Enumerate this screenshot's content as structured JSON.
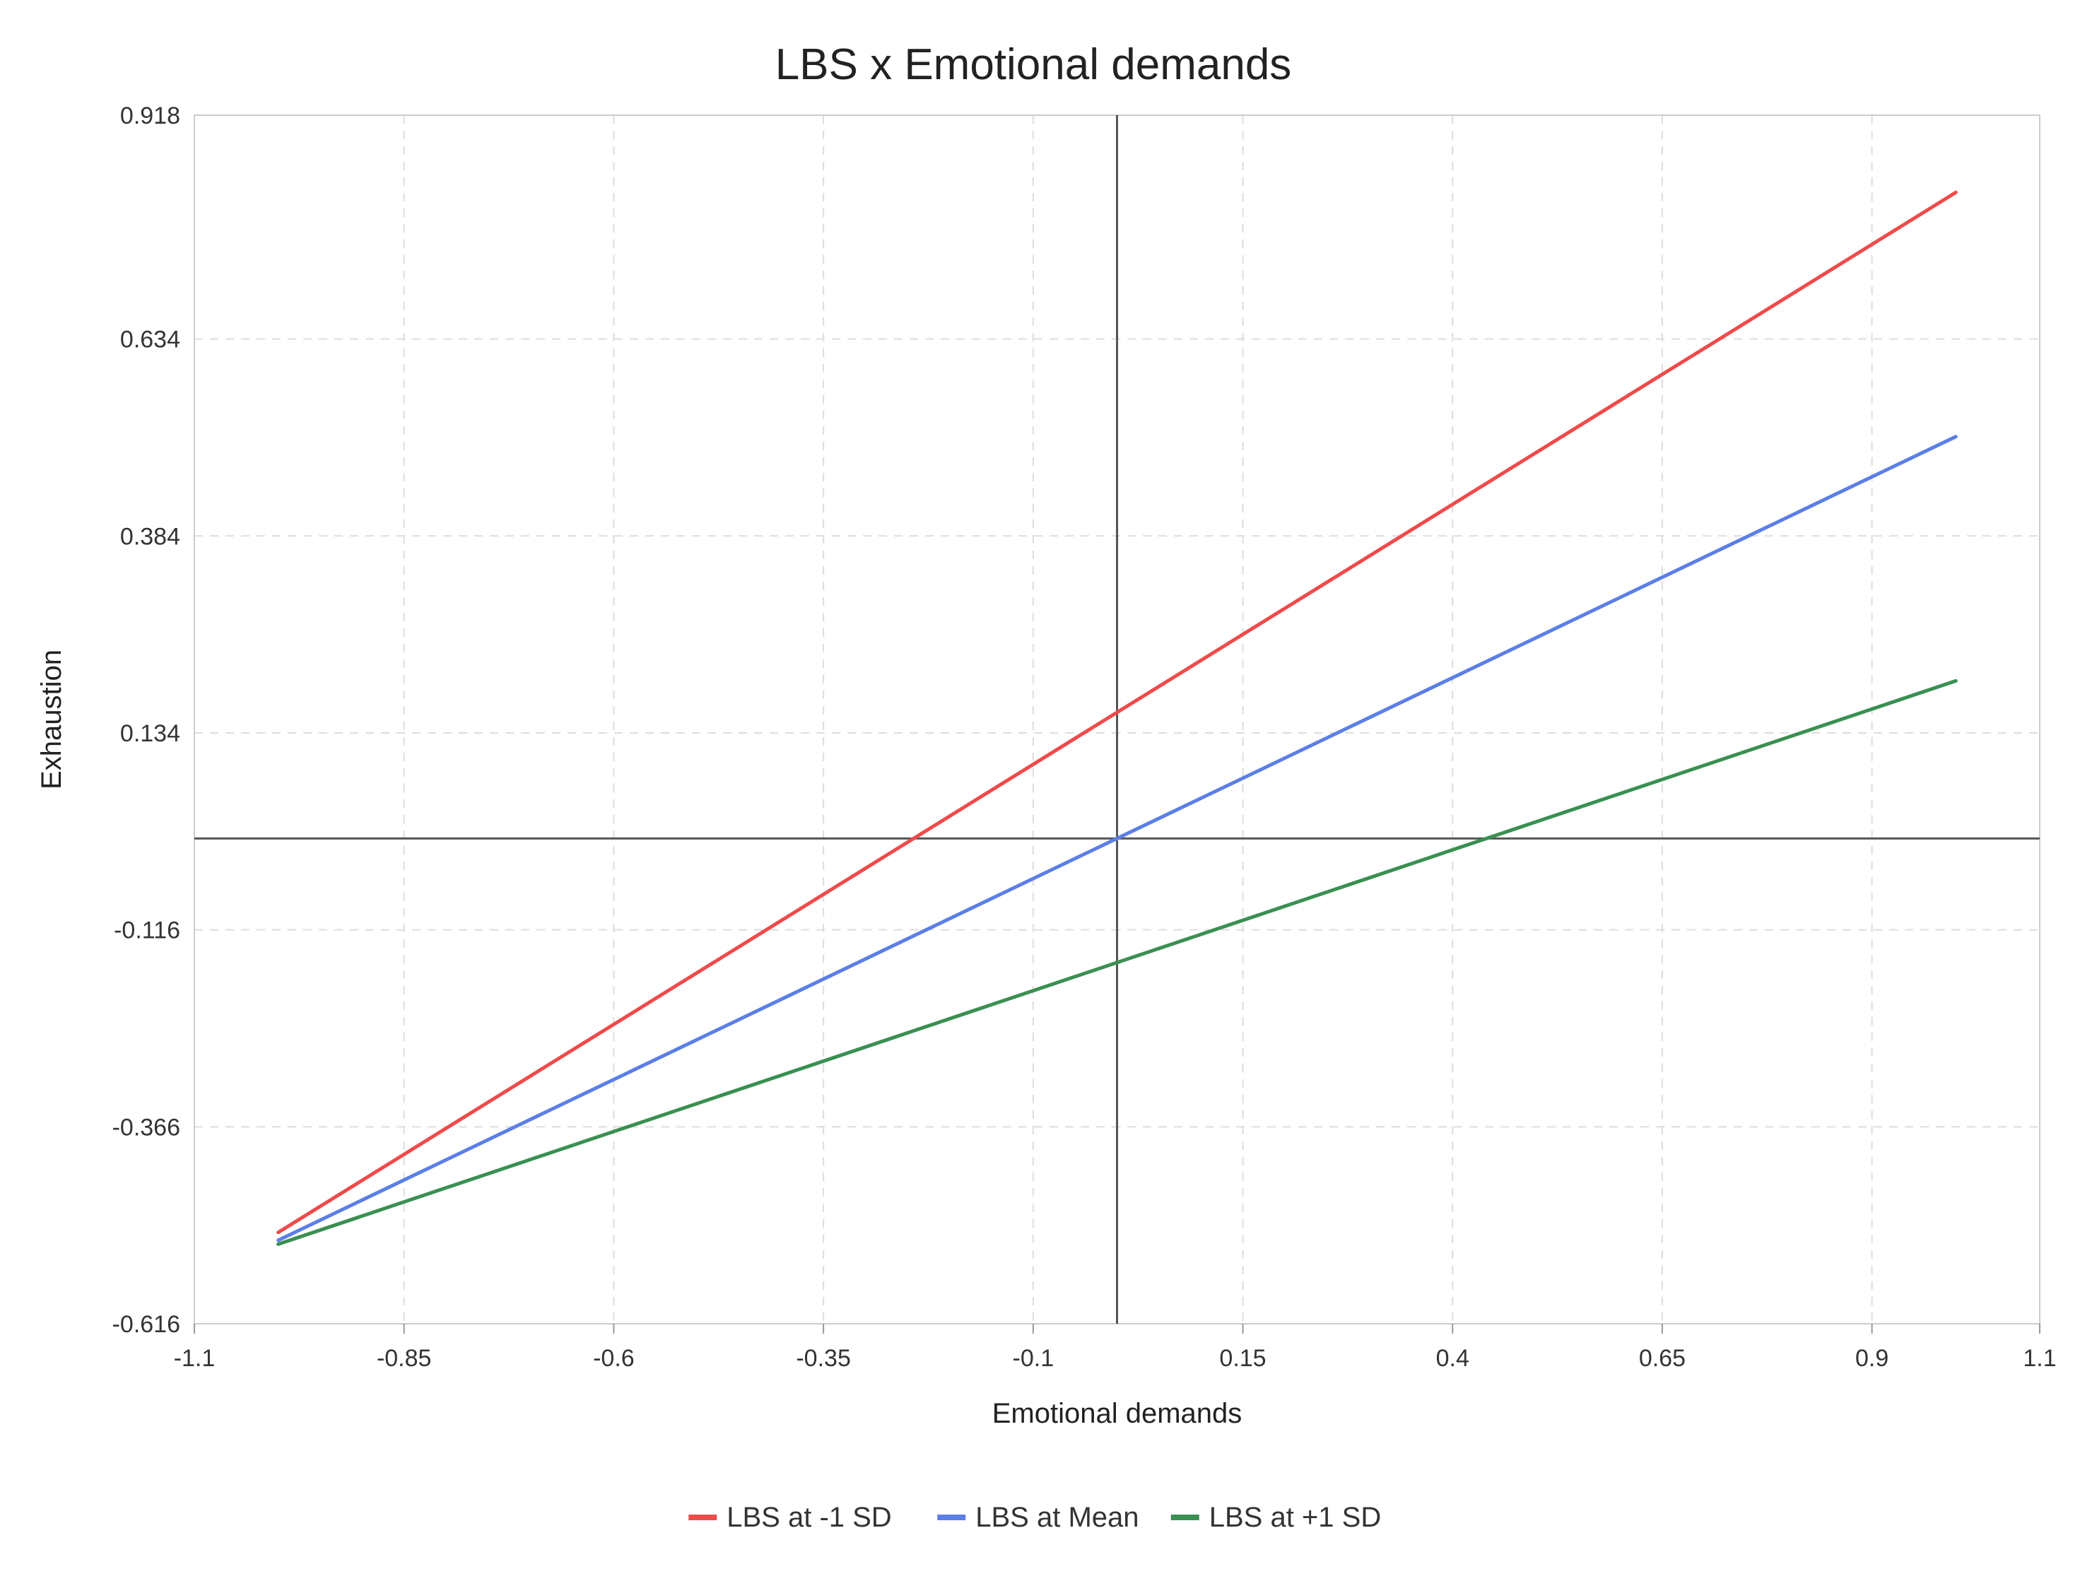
{
  "chart_data": {
    "type": "line",
    "title": "LBS x Emotional demands",
    "xlabel": "Emotional demands",
    "ylabel": "Exhaustion",
    "xlim": [
      -1.1,
      1.1
    ],
    "ylim": [
      -0.616,
      0.918
    ],
    "x_ticks": [
      "-1.1",
      "-0.85",
      "-0.6",
      "-0.35",
      "-0.1",
      "0.15",
      "0.4",
      "0.65",
      "0.9",
      "1.1"
    ],
    "y_ticks": [
      "0.918",
      "0.634",
      "0.384",
      "0.134",
      "-0.116",
      "-0.366",
      "-0.616"
    ],
    "x": [
      -1.0,
      1.0
    ],
    "series": [
      {
        "name": "LBS at -1 SD",
        "color": "#f04a4a",
        "values": [
          -0.5,
          0.82
        ]
      },
      {
        "name": "LBS at Mean",
        "color": "#5b7fe6",
        "values": [
          -0.51,
          0.51
        ]
      },
      {
        "name": "LBS at +1 SD",
        "color": "#3a8f52",
        "values": [
          -0.515,
          0.2
        ]
      }
    ],
    "grid": true,
    "legend_position": "bottom"
  }
}
